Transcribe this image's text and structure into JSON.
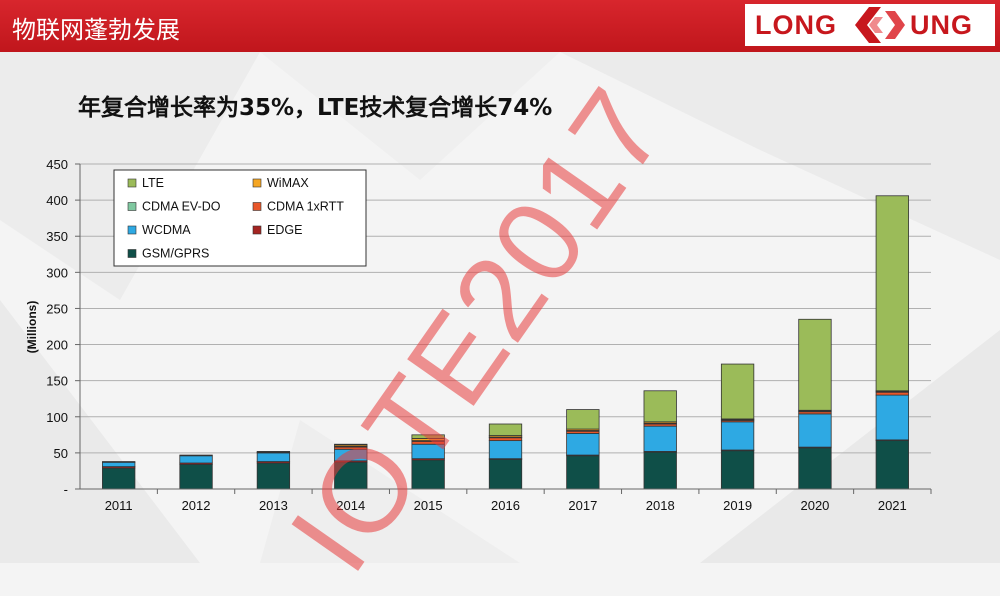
{
  "header": {
    "title": "物联网蓬勃发展",
    "logo_left": "LONG",
    "logo_right": "UNG"
  },
  "watermark": "IOTE2017",
  "colors": {
    "header_red": "#c8191f",
    "LTE": "#9bbb59",
    "WiMAX": "#f5a623",
    "CDMA EV-DO": "#7fc8a0",
    "CDMA 1xRTT": "#e8572a",
    "WCDMA": "#2ea9e3",
    "EDGE": "#a42522",
    "GSM/GPRS": "#0f4f48"
  },
  "chart_data": {
    "type": "bar",
    "stacked": true,
    "title": "年复合增长率为35%，LTE技术复合增长74%",
    "ylabel": "(Millions)",
    "xlabel": "",
    "ylim": [
      0,
      450
    ],
    "yticks": [
      0,
      50,
      100,
      150,
      200,
      250,
      300,
      350,
      400,
      450
    ],
    "ytick_labels": [
      "-",
      "50",
      "100",
      "150",
      "200",
      "250",
      "300",
      "350",
      "400",
      "450"
    ],
    "categories": [
      "2011",
      "2012",
      "2013",
      "2014",
      "2015",
      "2016",
      "2017",
      "2018",
      "2019",
      "2020",
      "2021"
    ],
    "series": [
      {
        "name": "GSM/GPRS",
        "values": [
          29,
          34,
          36,
          37,
          40,
          41,
          46,
          51,
          53,
          57,
          67
        ]
      },
      {
        "name": "EDGE",
        "values": [
          2,
          2,
          2,
          2,
          2,
          1,
          1,
          1,
          1,
          1,
          1
        ]
      },
      {
        "name": "WCDMA",
        "values": [
          6,
          10,
          12,
          16,
          20,
          25,
          30,
          35,
          39,
          46,
          62
        ]
      },
      {
        "name": "CDMA 1xRTT",
        "values": [
          1,
          1,
          1,
          3,
          4,
          4,
          3,
          3,
          2,
          3,
          4
        ]
      },
      {
        "name": "CDMA EV-DO",
        "values": [
          0,
          0,
          0,
          1,
          1,
          1,
          1,
          1,
          1,
          1,
          1
        ]
      },
      {
        "name": "WiMAX",
        "values": [
          0,
          0,
          0,
          2,
          3,
          2,
          2,
          2,
          1,
          1,
          1
        ]
      },
      {
        "name": "LTE",
        "values": [
          0,
          0,
          1,
          1,
          5,
          16,
          27,
          43,
          76,
          126,
          270
        ]
      }
    ],
    "legend": {
      "position": "top-left",
      "entries": [
        "LTE",
        "WiMAX",
        "CDMA EV-DO",
        "CDMA 1xRTT",
        "WCDMA",
        "EDGE",
        "GSM/GPRS"
      ]
    },
    "grid": true
  }
}
